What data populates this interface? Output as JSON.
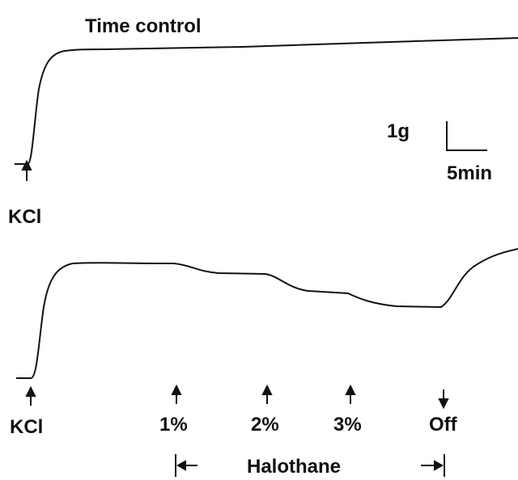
{
  "title": "Time control",
  "scale_bar": {
    "force": "1g",
    "time": "5min"
  },
  "top_trace": {
    "stimulus": "KCl"
  },
  "bottom_trace": {
    "stimulus": "KCl",
    "events": [
      {
        "label": "1%"
      },
      {
        "label": "2%"
      },
      {
        "label": "3%"
      },
      {
        "label": "Off"
      }
    ],
    "agent": "Halothane"
  }
}
